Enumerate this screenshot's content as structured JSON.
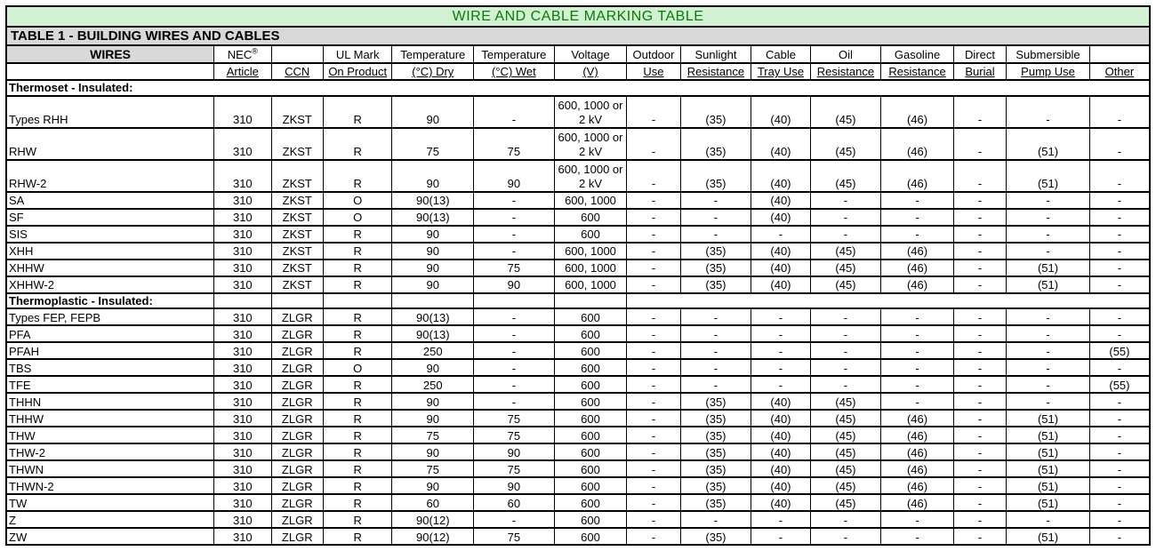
{
  "page_title": "WIRE AND CABLE MARKING TABLE",
  "colors": {
    "title_bg": "#d2f0d2",
    "title_text": "#0a7a0a",
    "header_gray": "#d9d9d9"
  },
  "table": {
    "subtitle": "TABLE 1 - BUILDING WIRES AND CABLES",
    "columns": [
      {
        "key": "wire",
        "line1": "WIRES",
        "line2": ""
      },
      {
        "key": "nec-article",
        "line1": "NEC®",
        "line2": "Article"
      },
      {
        "key": "ccn",
        "line1": "",
        "line2": "CCN"
      },
      {
        "key": "ul-mark",
        "line1": "UL Mark",
        "line2": "On Product"
      },
      {
        "key": "temp-dry",
        "line1": "Temperature",
        "line2": "(°C) Dry"
      },
      {
        "key": "temp-wet",
        "line1": "Temperature",
        "line2": "(°C) Wet"
      },
      {
        "key": "voltage",
        "line1": "Voltage",
        "line2": "(V)"
      },
      {
        "key": "outdoor-use",
        "line1": "Outdoor",
        "line2": "Use"
      },
      {
        "key": "sunlight-resistance",
        "line1": "Sunlight",
        "line2": "Resistance"
      },
      {
        "key": "cable-tray-use",
        "line1": "Cable",
        "line2": "Tray Use"
      },
      {
        "key": "oil-resistance",
        "line1": "Oil",
        "line2": "Resistance"
      },
      {
        "key": "gasoline-resistance",
        "line1": "Gasoline",
        "line2": "Resistance"
      },
      {
        "key": "direct-burial",
        "line1": "Direct",
        "line2": "Burial"
      },
      {
        "key": "submersible-pump-use",
        "line1": "Submersible",
        "line2": "Pump Use"
      },
      {
        "key": "other",
        "line1": "",
        "line2": "Other"
      }
    ],
    "sections": [
      {
        "label": "Thermoset - Insulated:",
        "rows": [
          [
            "Types RHH",
            "310",
            "ZKST",
            "R",
            "90",
            "-",
            "600, 1000 or 2 kV",
            "-",
            "(35)",
            "(40)",
            "(45)",
            "(46)",
            "-",
            "-",
            "-"
          ],
          [
            "RHW",
            "310",
            "ZKST",
            "R",
            "75",
            "75",
            "600, 1000 or 2 kV",
            "-",
            "(35)",
            "(40)",
            "(45)",
            "(46)",
            "-",
            "(51)",
            "-"
          ],
          [
            "RHW-2",
            "310",
            "ZKST",
            "R",
            "90",
            "90",
            "600, 1000 or 2 kV",
            "-",
            "(35)",
            "(40)",
            "(45)",
            "(46)",
            "-",
            "(51)",
            "-"
          ],
          [
            "SA",
            "310",
            "ZKST",
            "O",
            "90(13)",
            "-",
            "600, 1000",
            "-",
            "-",
            "(40)",
            "-",
            "-",
            "-",
            "-",
            "-"
          ],
          [
            "SF",
            "310",
            "ZKST",
            "O",
            "90(13)",
            "-",
            "600",
            "-",
            "-",
            "(40)",
            "-",
            "-",
            "-",
            "-",
            "-"
          ],
          [
            "SIS",
            "310",
            "ZKST",
            "R",
            "90",
            "-",
            "600",
            "-",
            "-",
            "-",
            "-",
            "-",
            "-",
            "-",
            "-"
          ],
          [
            "XHH",
            "310",
            "ZKST",
            "R",
            "90",
            "-",
            "600, 1000",
            "-",
            "(35)",
            "(40)",
            "(45)",
            "(46)",
            "-",
            "-",
            "-"
          ],
          [
            "XHHW",
            "310",
            "ZKST",
            "R",
            "90",
            "75",
            "600, 1000",
            "-",
            "(35)",
            "(40)",
            "(45)",
            "(46)",
            "-",
            "(51)",
            "-"
          ],
          [
            "XHHW-2",
            "310",
            "ZKST",
            "R",
            "90",
            "90",
            "600, 1000",
            "-",
            "(35)",
            "(40)",
            "(45)",
            "(46)",
            "-",
            "(51)",
            "-"
          ]
        ]
      },
      {
        "label": "Thermoplastic - Insulated:",
        "rows": [
          [
            "Types FEP, FEPB",
            "310",
            "ZLGR",
            "R",
            "90(13)",
            "-",
            "600",
            "-",
            "-",
            "-",
            "-",
            "-",
            "-",
            "-",
            "-"
          ],
          [
            "PFA",
            "310",
            "ZLGR",
            "R",
            "90(13)",
            "-",
            "600",
            "-",
            "-",
            "-",
            "-",
            "-",
            "-",
            "-",
            "-"
          ],
          [
            "PFAH",
            "310",
            "ZLGR",
            "R",
            "250",
            "-",
            "600",
            "-",
            "-",
            "-",
            "-",
            "-",
            "-",
            "-",
            "(55)"
          ],
          [
            "TBS",
            "310",
            "ZLGR",
            "O",
            "90",
            "-",
            "600",
            "-",
            "-",
            "-",
            "-",
            "-",
            "-",
            "-",
            "-"
          ],
          [
            "TFE",
            "310",
            "ZLGR",
            "R",
            "250",
            "-",
            "600",
            "-",
            "-",
            "-",
            "-",
            "-",
            "-",
            "-",
            "(55)"
          ],
          [
            "THHN",
            "310",
            "ZLGR",
            "R",
            "90",
            "-",
            "600",
            "-",
            "(35)",
            "(40)",
            "(45)",
            "-",
            "-",
            "-",
            "-"
          ],
          [
            "THHW",
            "310",
            "ZLGR",
            "R",
            "90",
            "75",
            "600",
            "-",
            "(35)",
            "(40)",
            "(45)",
            "(46)",
            "-",
            "(51)",
            "-"
          ],
          [
            "THW",
            "310",
            "ZLGR",
            "R",
            "75",
            "75",
            "600",
            "-",
            "(35)",
            "(40)",
            "(45)",
            "(46)",
            "-",
            "(51)",
            "-"
          ],
          [
            "THW-2",
            "310",
            "ZLGR",
            "R",
            "90",
            "90",
            "600",
            "-",
            "(35)",
            "(40)",
            "(45)",
            "(46)",
            "-",
            "(51)",
            "-"
          ],
          [
            "THWN",
            "310",
            "ZLGR",
            "R",
            "75",
            "75",
            "600",
            "-",
            "(35)",
            "(40)",
            "(45)",
            "(46)",
            "-",
            "(51)",
            "-"
          ],
          [
            "THWN-2",
            "310",
            "ZLGR",
            "R",
            "90",
            "90",
            "600",
            "-",
            "(35)",
            "(40)",
            "(45)",
            "(46)",
            "-",
            "(51)",
            "-"
          ],
          [
            "TW",
            "310",
            "ZLGR",
            "R",
            "60",
            "60",
            "600",
            "-",
            "(35)",
            "(40)",
            "(45)",
            "(46)",
            "-",
            "(51)",
            "-"
          ],
          [
            "Z",
            "310",
            "ZLGR",
            "R",
            "90(12)",
            "-",
            "600",
            "-",
            "-",
            "-",
            "-",
            "-",
            "-",
            "-",
            "-"
          ],
          [
            "ZW",
            "310",
            "ZLGR",
            "R",
            "90(12)",
            "75",
            "600",
            "-",
            "(35)",
            "-",
            "-",
            "-",
            "-",
            "(51)",
            "-"
          ]
        ]
      }
    ]
  }
}
